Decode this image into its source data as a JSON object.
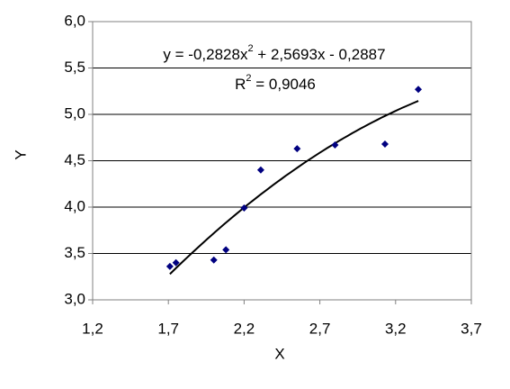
{
  "chart_data": {
    "type": "scatter",
    "x_label": "X",
    "y_label": "Y",
    "xlim": [
      1.2,
      3.7
    ],
    "xticks": [
      {
        "value": 1.2,
        "label": "1,2"
      },
      {
        "value": 1.7,
        "label": "1,7"
      },
      {
        "value": 2.2,
        "label": "2,2"
      },
      {
        "value": 2.7,
        "label": "2,7"
      },
      {
        "value": 3.2,
        "label": "3,2"
      },
      {
        "value": 3.7,
        "label": "3,7"
      }
    ],
    "ylim": [
      3.0,
      6.0
    ],
    "yticks": [
      {
        "value": 3.0,
        "label": "3,0"
      },
      {
        "value": 3.5,
        "label": "3,5"
      },
      {
        "value": 4.0,
        "label": "4,0"
      },
      {
        "value": 4.5,
        "label": "4,5"
      },
      {
        "value": 5.0,
        "label": "5,0"
      },
      {
        "value": 5.5,
        "label": "5,5"
      },
      {
        "value": 6.0,
        "label": "6,0"
      }
    ],
    "grid": true,
    "color": "#000080",
    "x": [
      1.71,
      1.75,
      2.0,
      2.08,
      2.2,
      2.31,
      2.55,
      2.8,
      3.13,
      3.35
    ],
    "values": [
      3.36,
      3.4,
      3.43,
      3.54,
      3.99,
      4.4,
      4.63,
      4.67,
      4.68,
      5.27
    ],
    "trendline": {
      "coefficients": [
        -0.2828,
        2.5693,
        -0.2887
      ],
      "equation": [
        "y = -0,2828x",
        "2",
        " + 2,5693x - 0,2887"
      ],
      "r_squared": [
        "R",
        "2",
        " = 0,9046"
      ]
    }
  }
}
